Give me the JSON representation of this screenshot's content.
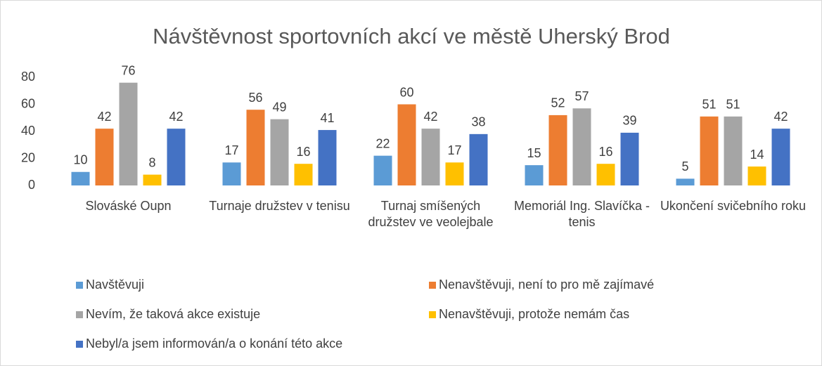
{
  "chart_data": {
    "type": "bar",
    "title": "Návštěvnost sportovních akcí ve městě Uherský Brod",
    "categories": [
      "Slováské Oupn",
      "Turnaje družstev v tenisu",
      "Turnaj smíšených družstev ve veolejbale",
      "Memoriál Ing. Slavíčka - tenis",
      "Ukončení svičebního roku"
    ],
    "series": [
      {
        "name": "Navštěvuji",
        "color": "#5b9bd5",
        "values": [
          10,
          17,
          22,
          15,
          5
        ]
      },
      {
        "name": "Nenavštěvuji, není to pro mě zajímavé",
        "color": "#ed7d31",
        "values": [
          42,
          56,
          60,
          52,
          51
        ]
      },
      {
        "name": "Nevím, že taková akce existuje",
        "color": "#a5a5a5",
        "values": [
          76,
          49,
          42,
          57,
          51
        ]
      },
      {
        "name": "Nenavštěvuji, protože nemám čas",
        "color": "#ffc000",
        "values": [
          8,
          16,
          17,
          16,
          14
        ]
      },
      {
        "name": "Nebyl/a jsem informován/a o konání této akce",
        "color": "#4472c4",
        "values": [
          42,
          41,
          38,
          39,
          42
        ]
      }
    ],
    "ylim": [
      0,
      80
    ],
    "yticks": [
      0,
      20,
      40,
      60,
      80
    ],
    "grid": false,
    "legend": "bottom"
  }
}
